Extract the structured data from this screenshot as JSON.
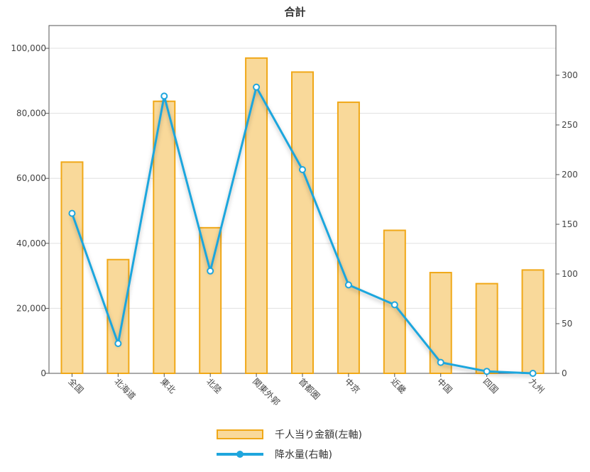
{
  "chart_data": {
    "type": "bar",
    "title": "合計",
    "categories": [
      "全国",
      "北海道",
      "東北",
      "北陸",
      "関東外郭",
      "首都圏",
      "中京",
      "近畿",
      "中国",
      "四国",
      "九州"
    ],
    "series": [
      {
        "name": "千人当り金額(左軸)",
        "type": "bar",
        "axis": "left",
        "values": [
          65000,
          35000,
          83700,
          44800,
          97000,
          92700,
          83400,
          44000,
          31000,
          27600,
          31800
        ]
      },
      {
        "name": "降水量(右軸)",
        "type": "line",
        "axis": "right",
        "values": [
          161,
          30,
          279,
          103,
          288,
          205,
          89,
          69,
          11,
          2,
          0
        ]
      }
    ],
    "yaxis_left": {
      "min": 0,
      "max": 107000,
      "ticks": [
        0,
        20000,
        40000,
        60000,
        80000,
        100000
      ],
      "tick_labels": [
        "0",
        "20,000",
        "40,000",
        "60,000",
        "80,000",
        "100,000"
      ]
    },
    "yaxis_right": {
      "min": 0,
      "max": 350,
      "ticks": [
        0,
        50,
        100,
        150,
        200,
        250,
        300
      ],
      "tick_labels": [
        "0",
        "50",
        "100",
        "150",
        "200",
        "250",
        "300"
      ]
    },
    "grid": true,
    "legend_position": "bottom-center",
    "colors": {
      "bar_fill": "#f9d99a",
      "bar_stroke": "#f0a818",
      "line": "#1fa6dd"
    }
  }
}
